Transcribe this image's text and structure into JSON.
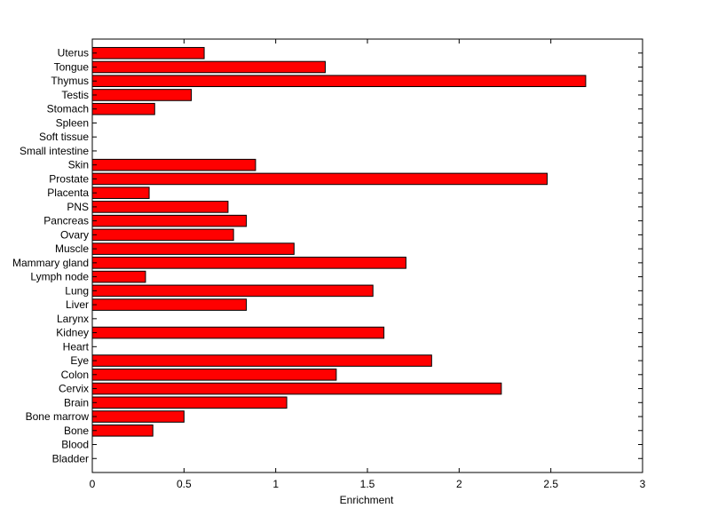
{
  "chart_data": {
    "type": "bar",
    "orientation": "horizontal",
    "title": "",
    "xlabel": "Enrichment",
    "ylabel": "",
    "xlim": [
      0,
      3
    ],
    "xticks": [
      "0",
      "0.5",
      "1",
      "1.5",
      "2",
      "2.5",
      "3"
    ],
    "xtick_values": [
      0,
      0.5,
      1,
      1.5,
      2,
      2.5,
      3
    ],
    "grid": false,
    "bar_color": "#ff0000",
    "categories": [
      "Uterus",
      "Tongue",
      "Thymus",
      "Testis",
      "Stomach",
      "Spleen",
      "Soft tissue",
      "Small intestine",
      "Skin",
      "Prostate",
      "Placenta",
      "PNS",
      "Pancreas",
      "Ovary",
      "Muscle",
      "Mammary gland",
      "Lymph node",
      "Lung",
      "Liver",
      "Larynx",
      "Kidney",
      "Heart",
      "Eye",
      "Colon",
      "Cervix",
      "Brain",
      "Bone marrow",
      "Bone",
      "Blood",
      "Bladder"
    ],
    "values": [
      0.61,
      1.27,
      2.69,
      0.54,
      0.34,
      0,
      0,
      0,
      0.89,
      2.48,
      0.31,
      0.74,
      0.84,
      0.77,
      1.1,
      1.71,
      0.29,
      1.53,
      0.84,
      0,
      1.59,
      0,
      1.85,
      1.33,
      2.23,
      1.06,
      0.5,
      0.33,
      0,
      0
    ]
  }
}
